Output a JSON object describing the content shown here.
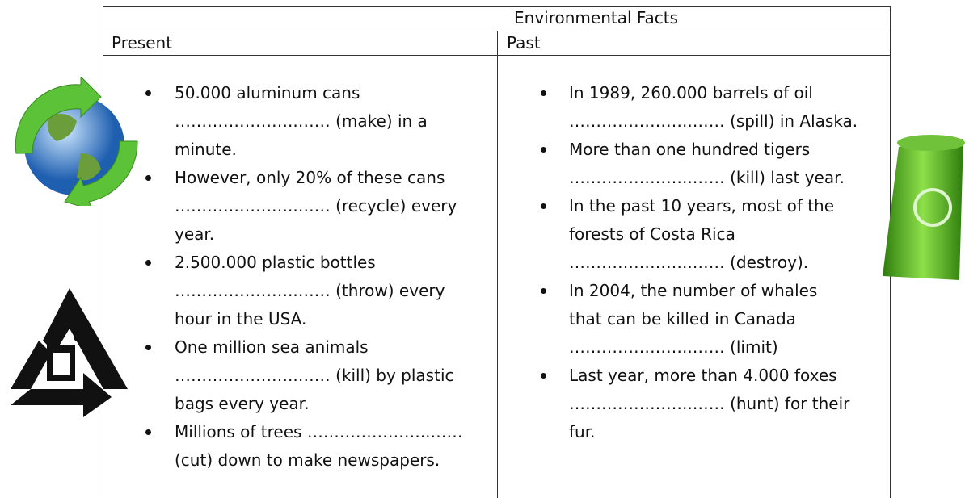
{
  "table": {
    "title": "Environmental Facts",
    "headers": [
      "Present",
      "Past"
    ],
    "columns": [
      [
        [
          "50.000 aluminum cans",
          "…………………..…… (make) in a",
          "minute."
        ],
        [
          "However, only 20% of these cans",
          "…………………..…… (recycle) every",
          "year."
        ],
        [
          "2.500.000 plastic bottles",
          "…………………..…… (throw) every",
          "hour in the USA."
        ],
        [
          "One million sea animals",
          "…………………..…… (kill) by plastic",
          "bags every year."
        ],
        [
          "Millions of trees …………………..……",
          "(cut) down to make newspapers."
        ]
      ],
      [
        [
          "In 1989, 260.000 barrels of oil",
          "…………………..…… (spill) in Alaska."
        ],
        [
          "More than one hundred tigers",
          "…………………..…… (kill) last year."
        ],
        [
          "In the past 10 years, most of the",
          "forests of Costa Rica",
          "…………………..…… (destroy)."
        ],
        [
          "In 2004, the number of whales",
          "that can be killed in Canada",
          "…………………..…… (limit)"
        ],
        [
          "Last year, more than 4.000 foxes",
          "…………………..…… (hunt) for their",
          "fur."
        ]
      ]
    ]
  }
}
